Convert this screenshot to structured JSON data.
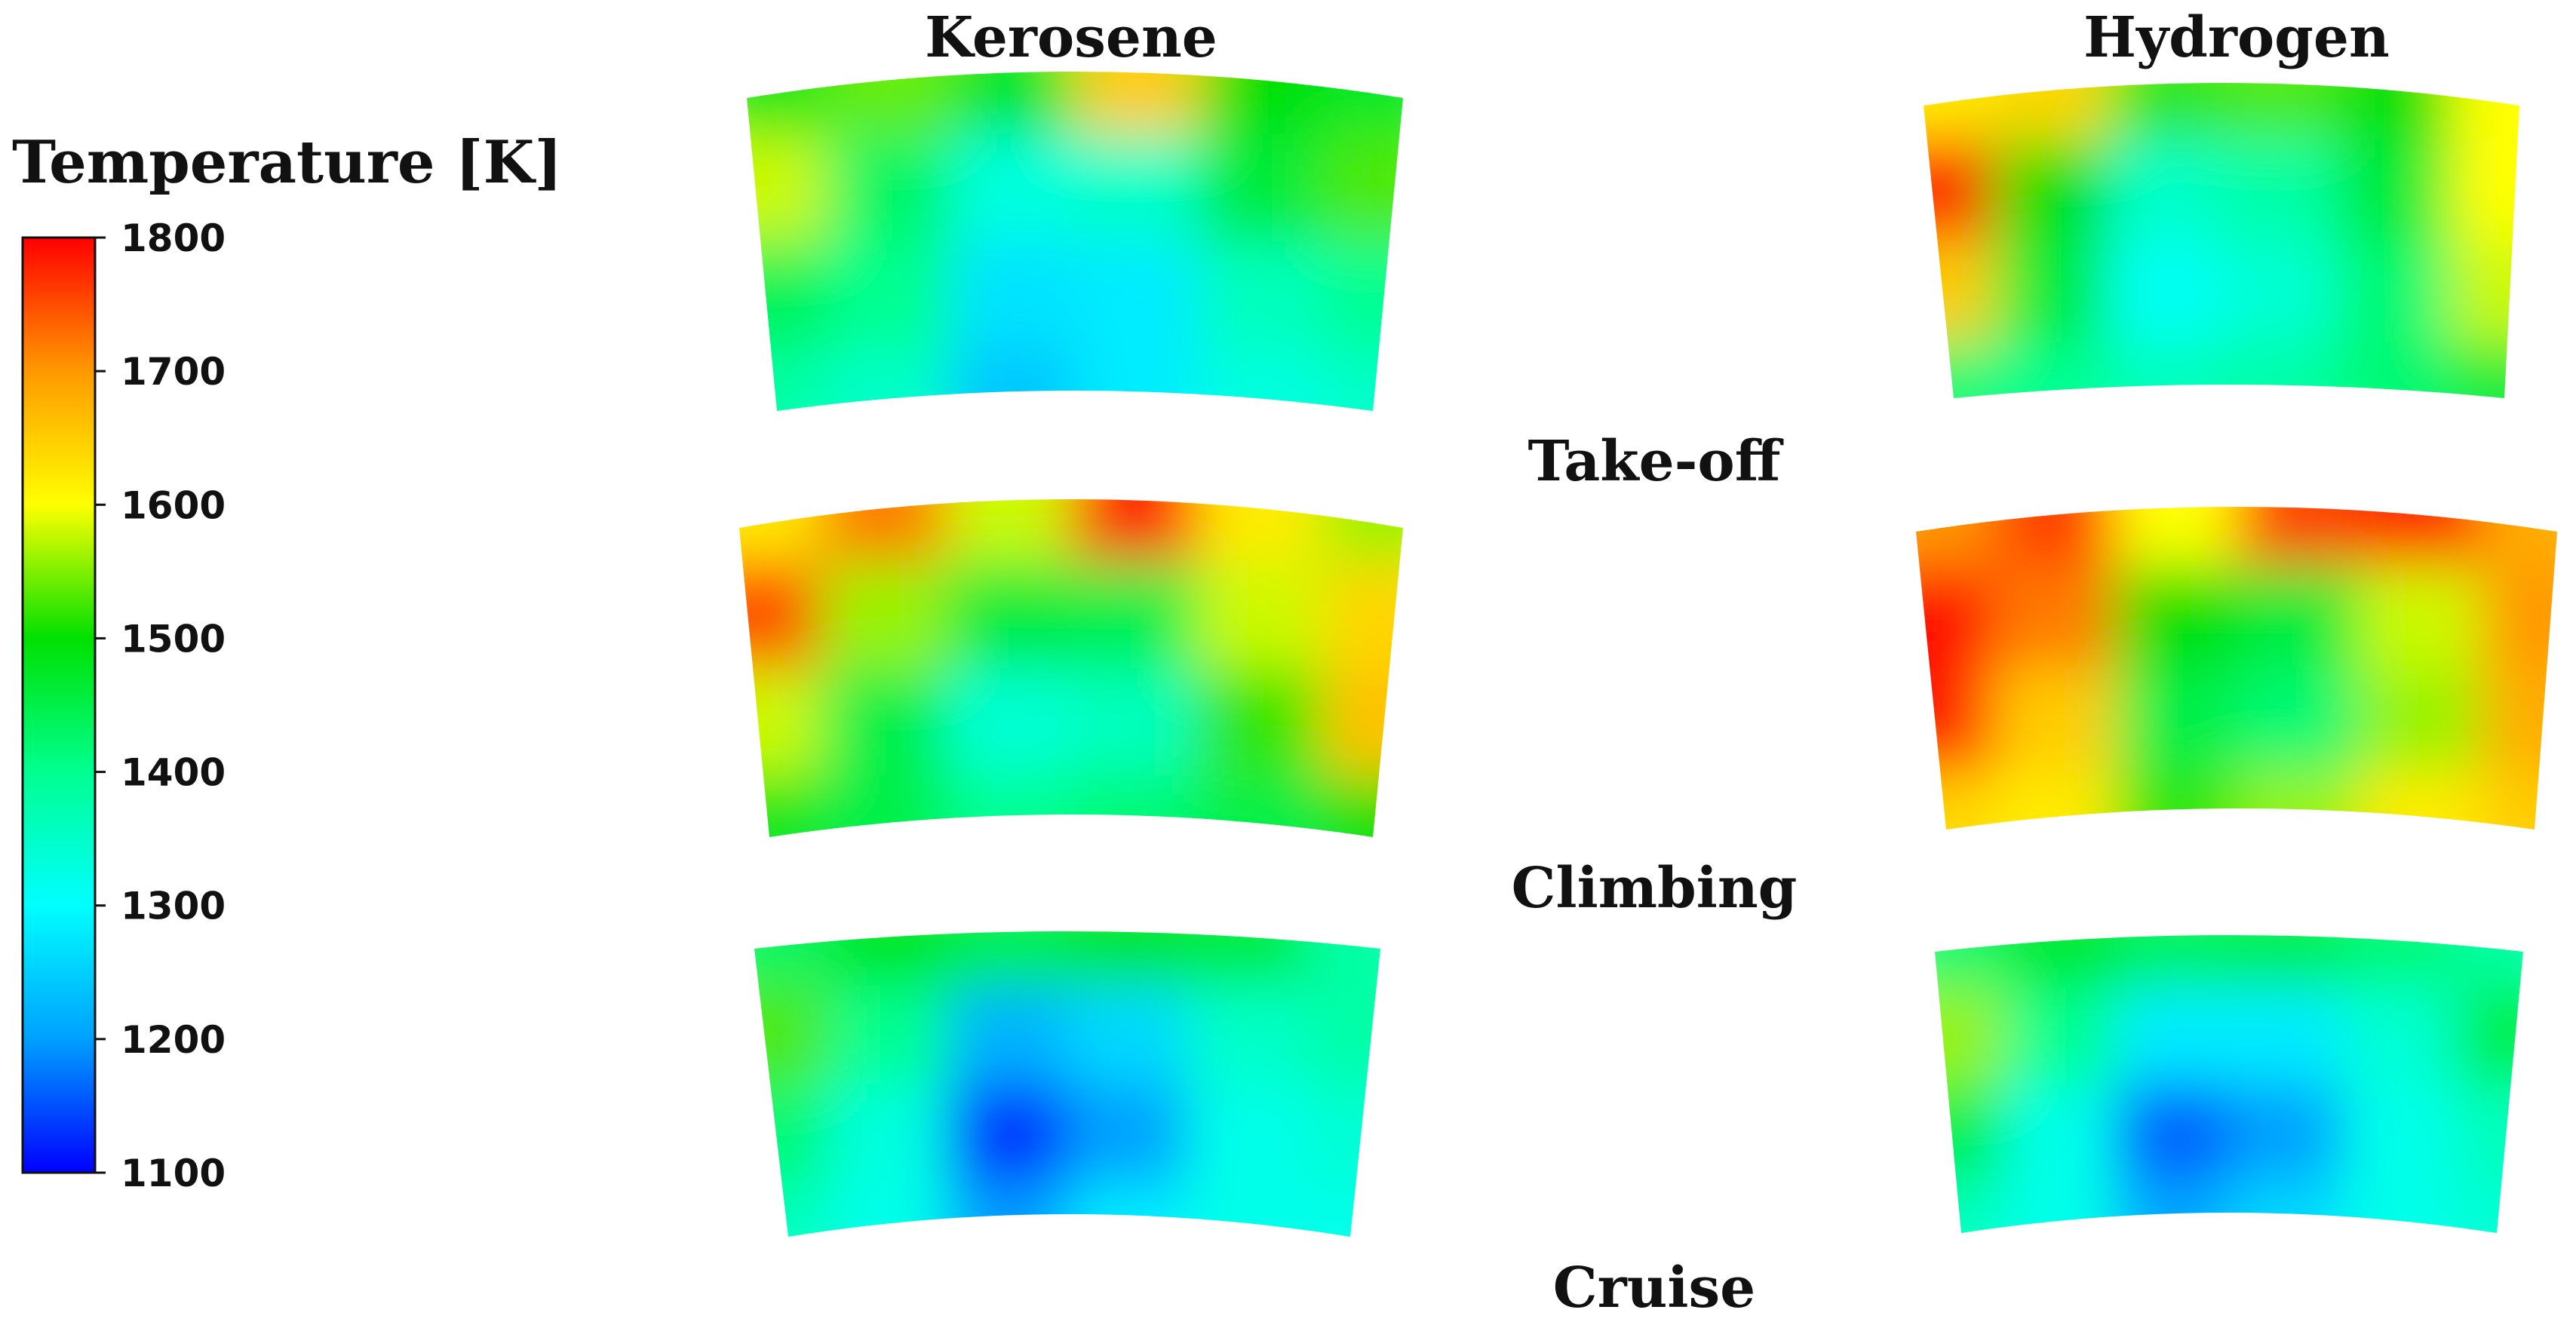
{
  "chart_data": {
    "type": "heatmap",
    "colorbar": {
      "title": "Temperature [K]",
      "min": 1100,
      "max": 1800,
      "ticks": [
        "1800",
        "1700",
        "1600",
        "1500",
        "1400",
        "1300",
        "1200",
        "1100"
      ],
      "colors": [
        "#0000ff",
        "#00a0ff",
        "#00ffff",
        "#00ff90",
        "#00e000",
        "#ffff00",
        "#ff9900",
        "#ff0000"
      ]
    },
    "columns": [
      "Kerosene",
      "Hydrogen"
    ],
    "rows": [
      "Take-off",
      "Climbing",
      "Cruise"
    ],
    "grid_cols": 6,
    "grid_rows": 4,
    "panels": [
      {
        "fuel": "Kerosene",
        "condition": "Take-off",
        "values": [
          [
            1480,
            1540,
            1480,
            1650,
            1500,
            1470
          ],
          [
            1580,
            1430,
            1330,
            1350,
            1460,
            1530
          ],
          [
            1440,
            1400,
            1270,
            1280,
            1360,
            1400
          ],
          [
            1380,
            1350,
            1240,
            1280,
            1330,
            1350
          ]
        ]
      },
      {
        "fuel": "Hydrogen",
        "condition": "Take-off",
        "values": [
          [
            1620,
            1640,
            1520,
            1530,
            1500,
            1600
          ],
          [
            1780,
            1500,
            1350,
            1380,
            1460,
            1600
          ],
          [
            1650,
            1460,
            1310,
            1340,
            1420,
            1580
          ],
          [
            1420,
            1400,
            1360,
            1380,
            1420,
            1460
          ]
        ]
      },
      {
        "fuel": "Kerosene",
        "condition": "Climbing",
        "values": [
          [
            1620,
            1720,
            1580,
            1780,
            1620,
            1560
          ],
          [
            1750,
            1560,
            1460,
            1450,
            1580,
            1640
          ],
          [
            1580,
            1450,
            1340,
            1360,
            1520,
            1660
          ],
          [
            1480,
            1450,
            1400,
            1420,
            1450,
            1500
          ]
        ]
      },
      {
        "fuel": "Hydrogen",
        "condition": "Climbing",
        "values": [
          [
            1700,
            1760,
            1600,
            1760,
            1780,
            1680
          ],
          [
            1790,
            1720,
            1500,
            1460,
            1580,
            1700
          ],
          [
            1780,
            1650,
            1450,
            1420,
            1560,
            1680
          ],
          [
            1640,
            1620,
            1520,
            1560,
            1620,
            1650
          ]
        ]
      },
      {
        "fuel": "Kerosene",
        "condition": "Cruise",
        "values": [
          [
            1430,
            1480,
            1450,
            1480,
            1460,
            1380
          ],
          [
            1530,
            1400,
            1220,
            1260,
            1350,
            1380
          ],
          [
            1420,
            1330,
            1130,
            1200,
            1320,
            1340
          ],
          [
            1360,
            1320,
            1200,
            1280,
            1320,
            1320
          ]
        ]
      },
      {
        "fuel": "Hydrogen",
        "condition": "Cruise",
        "values": [
          [
            1420,
            1470,
            1440,
            1450,
            1420,
            1380
          ],
          [
            1560,
            1400,
            1280,
            1280,
            1340,
            1450
          ],
          [
            1450,
            1320,
            1160,
            1200,
            1320,
            1360
          ],
          [
            1360,
            1320,
            1210,
            1260,
            1320,
            1340
          ]
        ]
      }
    ]
  }
}
